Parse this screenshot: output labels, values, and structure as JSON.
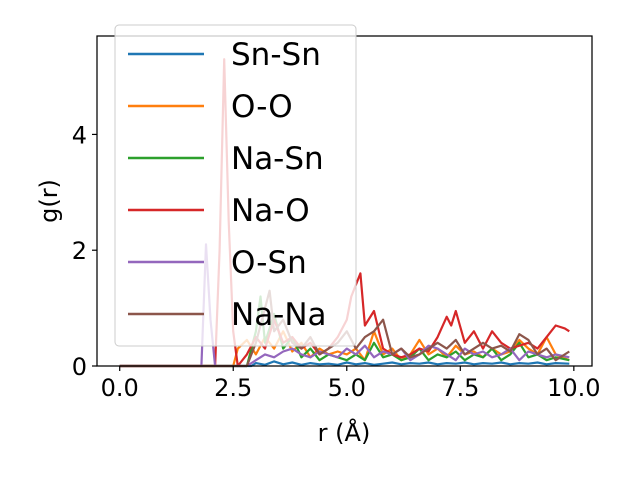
{
  "chart_data": {
    "type": "line",
    "xlabel": "r (Å)",
    "ylabel": "g(r)",
    "xlim": [
      -0.5,
      10.4
    ],
    "ylim": [
      0,
      5.7
    ],
    "xticks": [
      0.0,
      2.5,
      5.0,
      7.5,
      10.0
    ],
    "xtick_labels": [
      "0.0",
      "2.5",
      "5.0",
      "7.5",
      "10.0"
    ],
    "yticks": [
      0,
      2,
      4
    ],
    "ytick_labels": [
      "0",
      "2",
      "4"
    ],
    "grid": false,
    "legend_position": "upper-left",
    "series": [
      {
        "name": "Sn-Sn",
        "color": "#1f77b4",
        "x": [
          0.0,
          2.9,
          3.0,
          3.2,
          3.4,
          3.6,
          3.8,
          4.0,
          4.2,
          4.4,
          4.6,
          4.8,
          5.0,
          5.2,
          5.4,
          5.6,
          5.8,
          6.0,
          6.2,
          6.4,
          6.6,
          6.8,
          7.0,
          7.2,
          7.4,
          7.6,
          7.8,
          8.0,
          8.2,
          8.4,
          8.6,
          8.8,
          9.0,
          9.2,
          9.4,
          9.6,
          9.9
        ],
        "y": [
          0.0,
          0.0,
          0.05,
          0.02,
          0.08,
          0.03,
          0.06,
          0.02,
          0.05,
          0.03,
          0.04,
          0.02,
          0.06,
          0.03,
          0.05,
          0.02,
          0.04,
          0.06,
          0.03,
          0.05,
          0.04,
          0.06,
          0.03,
          0.05,
          0.04,
          0.06,
          0.03,
          0.05,
          0.04,
          0.06,
          0.03,
          0.05,
          0.04,
          0.06,
          0.03,
          0.05,
          0.04
        ]
      },
      {
        "name": "O-O",
        "color": "#ff7f0e",
        "x": [
          0.0,
          2.5,
          2.6,
          2.8,
          3.0,
          3.2,
          3.4,
          3.6,
          3.8,
          4.0,
          4.2,
          4.4,
          4.6,
          4.8,
          5.0,
          5.2,
          5.4,
          5.6,
          5.8,
          6.0,
          6.2,
          6.4,
          6.6,
          6.8,
          7.0,
          7.2,
          7.4,
          7.6,
          7.8,
          8.0,
          8.2,
          8.4,
          8.6,
          8.8,
          9.0,
          9.2,
          9.4,
          9.6,
          9.9
        ],
        "y": [
          0.0,
          0.0,
          0.3,
          0.45,
          0.2,
          0.5,
          0.3,
          0.6,
          0.25,
          0.4,
          0.15,
          0.3,
          0.2,
          0.25,
          0.2,
          0.3,
          0.1,
          0.6,
          0.2,
          0.3,
          0.1,
          0.2,
          0.45,
          0.2,
          0.3,
          0.15,
          0.35,
          0.2,
          0.25,
          0.15,
          0.3,
          0.2,
          0.25,
          0.45,
          0.3,
          0.2,
          0.5,
          0.2,
          0.1
        ]
      },
      {
        "name": "Na-Sn",
        "color": "#2ca02c",
        "x": [
          0.0,
          2.8,
          3.0,
          3.1,
          3.2,
          3.4,
          3.6,
          3.8,
          4.0,
          4.2,
          4.4,
          4.6,
          4.8,
          5.0,
          5.2,
          5.4,
          5.6,
          5.8,
          6.0,
          6.2,
          6.4,
          6.6,
          6.8,
          7.0,
          7.2,
          7.4,
          7.6,
          7.8,
          8.0,
          8.2,
          8.4,
          8.6,
          8.8,
          9.0,
          9.2,
          9.4,
          9.6,
          9.9
        ],
        "y": [
          0.0,
          0.0,
          0.6,
          1.2,
          0.4,
          0.9,
          0.3,
          0.5,
          0.15,
          0.3,
          0.1,
          0.2,
          0.15,
          0.1,
          0.2,
          0.1,
          0.4,
          0.15,
          0.2,
          0.1,
          0.15,
          0.3,
          0.1,
          0.2,
          0.15,
          0.25,
          0.1,
          0.2,
          0.15,
          0.3,
          0.1,
          0.2,
          0.4,
          0.15,
          0.2,
          0.1,
          0.15,
          0.1
        ]
      },
      {
        "name": "Na-O",
        "color": "#d62728",
        "x": [
          0.0,
          2.1,
          2.2,
          2.3,
          2.4,
          2.5,
          2.6,
          2.8,
          3.0,
          3.2,
          3.4,
          3.6,
          3.8,
          4.0,
          4.2,
          4.4,
          4.6,
          4.8,
          5.0,
          5.1,
          5.3,
          5.4,
          5.6,
          5.8,
          6.0,
          6.2,
          6.4,
          6.6,
          6.8,
          7.0,
          7.2,
          7.3,
          7.4,
          7.6,
          7.8,
          8.0,
          8.2,
          8.4,
          8.6,
          8.8,
          9.0,
          9.2,
          9.4,
          9.6,
          9.8,
          9.9
        ],
        "y": [
          0.0,
          0.0,
          2.0,
          5.3,
          2.5,
          0.6,
          0.0,
          0.2,
          0.5,
          0.3,
          0.8,
          0.4,
          0.5,
          0.3,
          0.4,
          0.2,
          0.3,
          0.5,
          0.8,
          1.2,
          1.6,
          0.7,
          0.95,
          0.3,
          0.2,
          0.15,
          0.2,
          0.3,
          0.25,
          0.5,
          0.85,
          0.7,
          0.95,
          0.4,
          0.6,
          0.3,
          0.6,
          0.4,
          0.3,
          0.35,
          0.4,
          0.3,
          0.5,
          0.7,
          0.65,
          0.6
        ]
      },
      {
        "name": "O-Sn",
        "color": "#9467bd",
        "x": [
          0.0,
          1.8,
          1.9,
          2.0,
          2.1,
          2.2,
          2.5,
          2.8,
          3.0,
          3.2,
          3.4,
          3.6,
          3.8,
          4.0,
          4.2,
          4.4,
          4.6,
          4.8,
          5.0,
          5.2,
          5.4,
          5.6,
          5.8,
          6.0,
          6.2,
          6.4,
          6.6,
          6.8,
          7.0,
          7.2,
          7.4,
          7.6,
          7.8,
          8.0,
          8.2,
          8.4,
          8.6,
          8.8,
          9.0,
          9.2,
          9.4,
          9.6,
          9.9
        ],
        "y": [
          0.0,
          0.0,
          2.1,
          0.8,
          0.0,
          0.0,
          0.0,
          0.0,
          0.1,
          0.2,
          0.15,
          0.25,
          0.3,
          0.2,
          0.15,
          0.25,
          0.2,
          0.15,
          0.3,
          0.2,
          0.35,
          0.15,
          0.25,
          0.2,
          0.3,
          0.1,
          0.2,
          0.35,
          0.3,
          0.2,
          0.1,
          0.3,
          0.2,
          0.25,
          0.15,
          0.2,
          0.3,
          0.1,
          0.25,
          0.2,
          0.15,
          0.2,
          0.15
        ]
      },
      {
        "name": "Na-Na",
        "color": "#8c564b",
        "x": [
          0.0,
          2.8,
          3.0,
          3.2,
          3.3,
          3.4,
          3.6,
          3.8,
          4.0,
          4.2,
          4.4,
          4.6,
          4.8,
          5.0,
          5.2,
          5.4,
          5.6,
          5.8,
          6.0,
          6.2,
          6.4,
          6.6,
          6.8,
          7.0,
          7.2,
          7.4,
          7.6,
          7.8,
          8.0,
          8.2,
          8.4,
          8.6,
          8.8,
          9.0,
          9.2,
          9.4,
          9.6,
          9.9
        ],
        "y": [
          0.0,
          0.0,
          0.4,
          1.0,
          1.3,
          0.6,
          0.8,
          0.4,
          0.3,
          0.5,
          0.2,
          0.3,
          0.4,
          0.6,
          0.3,
          0.5,
          0.6,
          0.8,
          0.2,
          0.3,
          0.15,
          0.2,
          0.3,
          0.4,
          0.3,
          0.45,
          0.2,
          0.3,
          0.4,
          0.3,
          0.35,
          0.25,
          0.55,
          0.45,
          0.2,
          0.3,
          0.1,
          0.25
        ]
      }
    ]
  }
}
